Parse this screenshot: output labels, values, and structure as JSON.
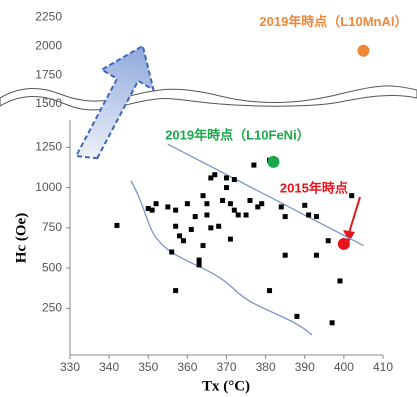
{
  "chart_data": [
    {
      "type": "scatter",
      "yticks": [
        1500,
        1750,
        2000,
        2250
      ],
      "ylim": [
        1500,
        2330
      ],
      "xlim": [
        330,
        410
      ],
      "series": [
        {
          "name": "2019年時点（L10MnAl）",
          "color": "#f0883a",
          "x": [
            405
          ],
          "y": [
            1960
          ]
        }
      ]
    },
    {
      "type": "scatter",
      "xlabel": "Tx (°C)",
      "ylabel": "Hc (Oe)",
      "xlim": [
        330,
        410
      ],
      "xticks": [
        330,
        340,
        350,
        360,
        370,
        380,
        390,
        400,
        410
      ],
      "ylim": [
        -40,
        1420
      ],
      "yticks": [
        250,
        500,
        750,
        1000,
        1250
      ],
      "series": [
        {
          "color": "#000000",
          "x": [
            342,
            350,
            351,
            352,
            355,
            356,
            357,
            357,
            357,
            358,
            359,
            360,
            361,
            362,
            363,
            363,
            364,
            364,
            365,
            365,
            366,
            366,
            367,
            368,
            369,
            370,
            370,
            371,
            371,
            372,
            372,
            373,
            375,
            376,
            377,
            378,
            379,
            381,
            381,
            384,
            385,
            385,
            388,
            390,
            391,
            393,
            393,
            396,
            397,
            399,
            402
          ],
          "y": [
            765,
            870,
            860,
            900,
            880,
            600,
            360,
            860,
            760,
            700,
            670,
            900,
            740,
            820,
            550,
            520,
            950,
            640,
            830,
            900,
            1060,
            750,
            1080,
            760,
            920,
            1060,
            1000,
            680,
            900,
            1050,
            860,
            830,
            830,
            920,
            1140,
            880,
            900,
            1170,
            360,
            880,
            580,
            820,
            200,
            890,
            830,
            820,
            580,
            670,
            160,
            420,
            950
          ]
        },
        {
          "name": "2019年時点（L10FeNi）",
          "color": "#1aa84b",
          "x": [
            382
          ],
          "y": [
            1160
          ]
        },
        {
          "name": "2015年時点",
          "color": "#e8141c",
          "x": [
            400
          ],
          "y": [
            650
          ]
        }
      ]
    }
  ]
}
